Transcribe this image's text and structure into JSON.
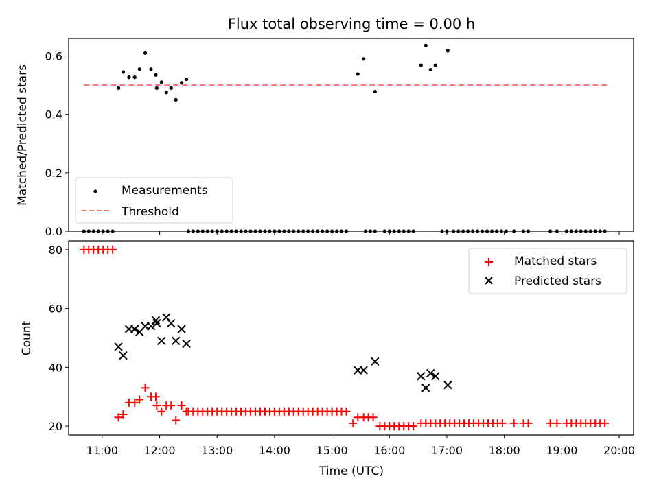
{
  "title": "Flux total observing time = 0.00 h",
  "colors": {
    "black": "#000000",
    "red": "#ff0000",
    "threshold": "#ff6f6f",
    "legend_border": "#cccccc"
  },
  "chart_data": [
    {
      "type": "scatter",
      "name": "ratio-panel",
      "ylabel": "Matched/Predicted stars",
      "ylim": [
        0,
        0.66
      ],
      "yticks": [
        0.0,
        0.2,
        0.4,
        0.6
      ],
      "ytick_labels": [
        "0.0",
        "0.2",
        "0.4",
        "0.6"
      ],
      "xlim": [
        "10:25",
        "20:15"
      ],
      "legend_placement": "lower-left",
      "series": [
        {
          "name": "Measurements",
          "marker": "dot",
          "color": "#000000",
          "points": [
            [
              "11:17",
              0.49
            ],
            [
              "11:22",
              0.545
            ],
            [
              "11:28",
              0.527
            ],
            [
              "11:34",
              0.527
            ],
            [
              "11:39",
              0.555
            ],
            [
              "11:45",
              0.61
            ],
            [
              "11:51",
              0.555
            ],
            [
              "11:56",
              0.535
            ],
            [
              "11:57",
              0.49
            ],
            [
              "12:02",
              0.51
            ],
            [
              "12:07",
              0.475
            ],
            [
              "12:12",
              0.49
            ],
            [
              "12:17",
              0.45
            ],
            [
              "12:23",
              0.508
            ],
            [
              "12:28",
              0.52
            ],
            [
              "15:27",
              0.538
            ],
            [
              "15:33",
              0.59
            ],
            [
              "15:45",
              0.478
            ],
            [
              "16:33",
              0.568
            ],
            [
              "16:38",
              0.636
            ],
            [
              "16:43",
              0.553
            ],
            [
              "16:48",
              0.568
            ],
            [
              "17:01",
              0.618
            ],
            [
              "10:41",
              0
            ],
            [
              "10:46",
              0
            ],
            [
              "10:51",
              0
            ],
            [
              "10:56",
              0
            ],
            [
              "11:01",
              0
            ],
            [
              "11:06",
              0
            ],
            [
              "11:11",
              0
            ],
            [
              "12:30",
              0
            ],
            [
              "12:35",
              0
            ],
            [
              "12:40",
              0
            ],
            [
              "12:45",
              0
            ],
            [
              "12:50",
              0
            ],
            [
              "12:55",
              0
            ],
            [
              "13:00",
              0
            ],
            [
              "13:05",
              0
            ],
            [
              "13:10",
              0
            ],
            [
              "13:15",
              0
            ],
            [
              "13:20",
              0
            ],
            [
              "13:25",
              0
            ],
            [
              "13:30",
              0
            ],
            [
              "13:35",
              0
            ],
            [
              "13:40",
              0
            ],
            [
              "13:45",
              0
            ],
            [
              "13:50",
              0
            ],
            [
              "13:55",
              0
            ],
            [
              "14:00",
              0
            ],
            [
              "14:05",
              0
            ],
            [
              "14:10",
              0
            ],
            [
              "14:15",
              0
            ],
            [
              "14:20",
              0
            ],
            [
              "14:25",
              0
            ],
            [
              "14:30",
              0
            ],
            [
              "14:35",
              0
            ],
            [
              "14:40",
              0
            ],
            [
              "14:45",
              0
            ],
            [
              "14:50",
              0
            ],
            [
              "14:55",
              0
            ],
            [
              "15:00",
              0
            ],
            [
              "15:05",
              0
            ],
            [
              "15:10",
              0
            ],
            [
              "15:15",
              0
            ],
            [
              "15:35",
              0
            ],
            [
              "15:40",
              0
            ],
            [
              "15:45",
              0
            ],
            [
              "15:55",
              0
            ],
            [
              "16:00",
              0
            ],
            [
              "16:05",
              0
            ],
            [
              "16:10",
              0
            ],
            [
              "16:15",
              0
            ],
            [
              "16:20",
              0
            ],
            [
              "16:25",
              0
            ],
            [
              "16:55",
              0
            ],
            [
              "17:00",
              0
            ],
            [
              "17:07",
              0
            ],
            [
              "17:12",
              0
            ],
            [
              "17:17",
              0
            ],
            [
              "17:22",
              0
            ],
            [
              "17:27",
              0
            ],
            [
              "17:32",
              0
            ],
            [
              "17:37",
              0
            ],
            [
              "17:42",
              0
            ],
            [
              "17:47",
              0
            ],
            [
              "17:52",
              0
            ],
            [
              "17:57",
              0
            ],
            [
              "18:02",
              0
            ],
            [
              "18:10",
              0
            ],
            [
              "18:20",
              0
            ],
            [
              "18:25",
              0
            ],
            [
              "18:48",
              0
            ],
            [
              "18:55",
              0
            ],
            [
              "19:05",
              0
            ],
            [
              "19:10",
              0
            ],
            [
              "19:15",
              0
            ],
            [
              "19:20",
              0
            ],
            [
              "19:25",
              0
            ],
            [
              "19:30",
              0
            ],
            [
              "19:35",
              0
            ],
            [
              "19:40",
              0
            ],
            [
              "19:45",
              0
            ]
          ]
        },
        {
          "name": "Threshold",
          "marker": "dashed-line",
          "color": "#ff6f6f",
          "points": [
            [
              "10:41",
              0.5
            ],
            [
              "19:48",
              0.5
            ]
          ]
        }
      ]
    },
    {
      "type": "scatter",
      "name": "count-panel",
      "xlabel": "Time (UTC)",
      "ylabel": "Count",
      "ylim": [
        17,
        83
      ],
      "yticks": [
        20,
        40,
        60,
        80
      ],
      "ytick_labels": [
        "20",
        "40",
        "60",
        "80"
      ],
      "xlim": [
        "10:25",
        "20:15"
      ],
      "xticks": [
        "11:00",
        "12:00",
        "13:00",
        "14:00",
        "15:00",
        "16:00",
        "17:00",
        "18:00",
        "19:00",
        "20:00"
      ],
      "xtick_labels": [
        "11:00",
        "12:00",
        "13:00",
        "14:00",
        "15:00",
        "16:00",
        "17:00",
        "18:00",
        "19:00",
        "20:00"
      ],
      "legend_placement": "upper-right",
      "series": [
        {
          "name": "Matched stars",
          "marker": "plus",
          "color": "#ff0000",
          "points": [
            [
              "10:41",
              80
            ],
            [
              "10:46",
              80
            ],
            [
              "10:51",
              80
            ],
            [
              "10:56",
              80
            ],
            [
              "11:01",
              80
            ],
            [
              "11:06",
              80
            ],
            [
              "11:11",
              80
            ],
            [
              "11:17",
              23
            ],
            [
              "11:22",
              24
            ],
            [
              "11:28",
              28
            ],
            [
              "11:34",
              28
            ],
            [
              "11:39",
              29
            ],
            [
              "11:45",
              33
            ],
            [
              "11:51",
              30
            ],
            [
              "11:56",
              30
            ],
            [
              "11:57",
              27
            ],
            [
              "12:02",
              25
            ],
            [
              "12:07",
              27
            ],
            [
              "12:12",
              27
            ],
            [
              "12:17",
              22
            ],
            [
              "12:23",
              27
            ],
            [
              "12:28",
              25
            ],
            [
              "12:30",
              25
            ],
            [
              "12:35",
              25
            ],
            [
              "12:40",
              25
            ],
            [
              "12:45",
              25
            ],
            [
              "12:50",
              25
            ],
            [
              "12:55",
              25
            ],
            [
              "13:00",
              25
            ],
            [
              "13:05",
              25
            ],
            [
              "13:10",
              25
            ],
            [
              "13:15",
              25
            ],
            [
              "13:20",
              25
            ],
            [
              "13:25",
              25
            ],
            [
              "13:30",
              25
            ],
            [
              "13:35",
              25
            ],
            [
              "13:40",
              25
            ],
            [
              "13:45",
              25
            ],
            [
              "13:50",
              25
            ],
            [
              "13:55",
              25
            ],
            [
              "14:00",
              25
            ],
            [
              "14:05",
              25
            ],
            [
              "14:10",
              25
            ],
            [
              "14:15",
              25
            ],
            [
              "14:20",
              25
            ],
            [
              "14:25",
              25
            ],
            [
              "14:30",
              25
            ],
            [
              "14:35",
              25
            ],
            [
              "14:40",
              25
            ],
            [
              "14:45",
              25
            ],
            [
              "14:50",
              25
            ],
            [
              "14:55",
              25
            ],
            [
              "15:00",
              25
            ],
            [
              "15:05",
              25
            ],
            [
              "15:10",
              25
            ],
            [
              "15:15",
              25
            ],
            [
              "15:22",
              21
            ],
            [
              "15:27",
              23
            ],
            [
              "15:33",
              23
            ],
            [
              "15:38",
              23
            ],
            [
              "15:43",
              23
            ],
            [
              "15:50",
              20
            ],
            [
              "15:55",
              20
            ],
            [
              "16:00",
              20
            ],
            [
              "16:05",
              20
            ],
            [
              "16:10",
              20
            ],
            [
              "16:15",
              20
            ],
            [
              "16:20",
              20
            ],
            [
              "16:25",
              20
            ],
            [
              "16:33",
              21
            ],
            [
              "16:38",
              21
            ],
            [
              "16:43",
              21
            ],
            [
              "16:48",
              21
            ],
            [
              "16:53",
              21
            ],
            [
              "16:58",
              21
            ],
            [
              "17:03",
              21
            ],
            [
              "17:08",
              21
            ],
            [
              "17:13",
              21
            ],
            [
              "17:18",
              21
            ],
            [
              "17:23",
              21
            ],
            [
              "17:28",
              21
            ],
            [
              "17:33",
              21
            ],
            [
              "17:38",
              21
            ],
            [
              "17:43",
              21
            ],
            [
              "17:48",
              21
            ],
            [
              "17:53",
              21
            ],
            [
              "17:58",
              21
            ],
            [
              "18:10",
              21
            ],
            [
              "18:20",
              21
            ],
            [
              "18:25",
              21
            ],
            [
              "18:48",
              21
            ],
            [
              "18:55",
              21
            ],
            [
              "19:05",
              21
            ],
            [
              "19:10",
              21
            ],
            [
              "19:15",
              21
            ],
            [
              "19:20",
              21
            ],
            [
              "19:25",
              21
            ],
            [
              "19:30",
              21
            ],
            [
              "19:35",
              21
            ],
            [
              "19:40",
              21
            ],
            [
              "19:45",
              21
            ]
          ]
        },
        {
          "name": "Predicted stars",
          "marker": "x",
          "color": "#000000",
          "points": [
            [
              "11:17",
              47
            ],
            [
              "11:22",
              44
            ],
            [
              "11:28",
              53
            ],
            [
              "11:34",
              53
            ],
            [
              "11:39",
              52
            ],
            [
              "11:45",
              54
            ],
            [
              "11:51",
              54
            ],
            [
              "11:56",
              56
            ],
            [
              "11:57",
              55
            ],
            [
              "12:02",
              49
            ],
            [
              "12:07",
              57
            ],
            [
              "12:12",
              55
            ],
            [
              "12:17",
              49
            ],
            [
              "12:23",
              53
            ],
            [
              "12:28",
              48
            ],
            [
              "15:27",
              39
            ],
            [
              "15:33",
              39
            ],
            [
              "15:45",
              42
            ],
            [
              "16:33",
              37
            ],
            [
              "16:38",
              33
            ],
            [
              "16:43",
              38
            ],
            [
              "16:48",
              37
            ],
            [
              "17:01",
              34
            ]
          ]
        }
      ]
    }
  ]
}
